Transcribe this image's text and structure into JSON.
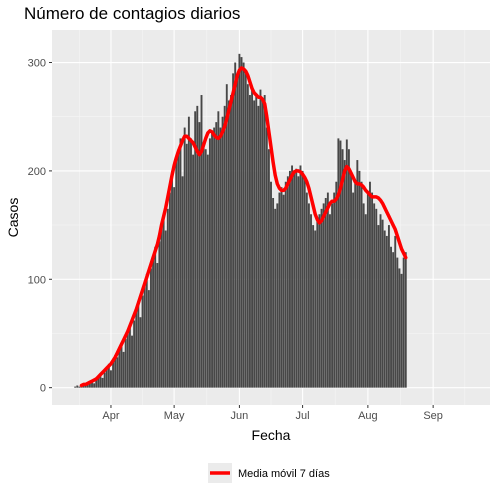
{
  "chart_data": {
    "type": "bar",
    "title": "Número de contagios diarios",
    "xlabel": "Fecha",
    "ylabel": "Casos",
    "y_ticks": [
      0,
      100,
      200,
      300
    ],
    "ylim": [
      -16,
      330
    ],
    "x_ticks": [
      {
        "label": "Apr",
        "date": "2020-04-01"
      },
      {
        "label": "May",
        "date": "2020-05-01"
      },
      {
        "label": "Jun",
        "date": "2020-06-01"
      },
      {
        "label": "Jul",
        "date": "2020-07-01"
      },
      {
        "label": "Aug",
        "date": "2020-08-01"
      },
      {
        "label": "Sep",
        "date": "2020-09-01"
      }
    ],
    "xlim": [
      "2020-03-04",
      "2020-09-28"
    ],
    "x_start": "2020-03-15",
    "values": [
      1,
      2,
      1,
      3,
      2,
      4,
      3,
      5,
      6,
      4,
      8,
      10,
      12,
      9,
      14,
      18,
      22,
      16,
      25,
      30,
      28,
      35,
      40,
      33,
      45,
      50,
      58,
      48,
      62,
      70,
      80,
      65,
      85,
      95,
      105,
      90,
      110,
      120,
      130,
      115,
      135,
      150,
      160,
      145,
      165,
      180,
      200,
      185,
      210,
      220,
      230,
      195,
      240,
      225,
      250,
      230,
      215,
      255,
      260,
      245,
      270,
      225,
      220,
      215,
      230,
      235,
      240,
      245,
      255,
      240,
      250,
      260,
      280,
      265,
      270,
      290,
      300,
      285,
      308,
      305,
      300,
      290,
      280,
      270,
      275,
      265,
      270,
      260,
      275,
      265,
      270,
      240,
      220,
      190,
      175,
      165,
      170,
      180,
      185,
      178,
      190,
      195,
      200,
      205,
      198,
      202,
      195,
      205,
      200,
      195,
      180,
      170,
      160,
      150,
      145,
      155,
      160,
      165,
      170,
      175,
      180,
      160,
      170,
      180,
      190,
      230,
      228,
      220,
      210,
      229,
      220,
      200,
      180,
      190,
      210,
      200,
      190,
      170,
      160,
      180,
      190,
      180,
      170,
      165,
      150,
      160,
      155,
      145,
      140,
      150,
      130,
      125,
      140,
      120,
      110,
      105,
      120,
      125
    ],
    "series": [
      {
        "name": "Media móvil 7 días",
        "color": "#ff0000",
        "values": [
          null,
          null,
          null,
          2,
          3,
          3,
          4,
          5,
          6,
          7,
          8,
          10,
          12,
          14,
          16,
          18,
          20,
          22,
          25,
          28,
          32,
          36,
          40,
          44,
          48,
          52,
          57,
          62,
          67,
          72,
          78,
          84,
          90,
          96,
          102,
          108,
          114,
          120,
          126,
          132,
          140,
          150,
          158,
          166,
          176,
          186,
          196,
          205,
          212,
          218,
          223,
          228,
          232,
          232,
          230,
          228,
          226,
          222,
          218,
          215,
          218,
          224,
          230,
          235,
          237,
          236,
          233,
          231,
          230,
          232,
          236,
          241,
          248,
          256,
          264,
          272,
          280,
          288,
          293,
          295,
          294,
          292,
          288,
          282,
          276,
          272,
          270,
          268,
          268,
          266,
          262,
          250,
          236,
          222,
          208,
          196,
          188,
          184,
          182,
          182,
          184,
          188,
          192,
          196,
          199,
          200,
          200,
          199,
          197,
          194,
          190,
          184,
          176,
          168,
          160,
          155,
          152,
          154,
          158,
          162,
          166,
          170,
          172,
          172,
          174,
          178,
          184,
          192,
          200,
          204,
          202,
          198,
          194,
          190,
          188,
          188,
          187,
          185,
          182,
          180,
          178,
          176,
          176,
          176,
          175,
          173,
          170,
          166,
          162,
          158,
          154,
          150,
          146,
          140,
          134,
          128,
          124,
          120
        ]
      }
    ],
    "legend": {
      "position": "bottom",
      "labels": [
        "Media móvil 7 días"
      ]
    },
    "grid": true,
    "colors": {
      "bars": "#474747",
      "panel": "#ebebeb",
      "grid_major": "#ffffff",
      "grid_minor": "#f5f5f5",
      "line": "#ff0000"
    }
  }
}
